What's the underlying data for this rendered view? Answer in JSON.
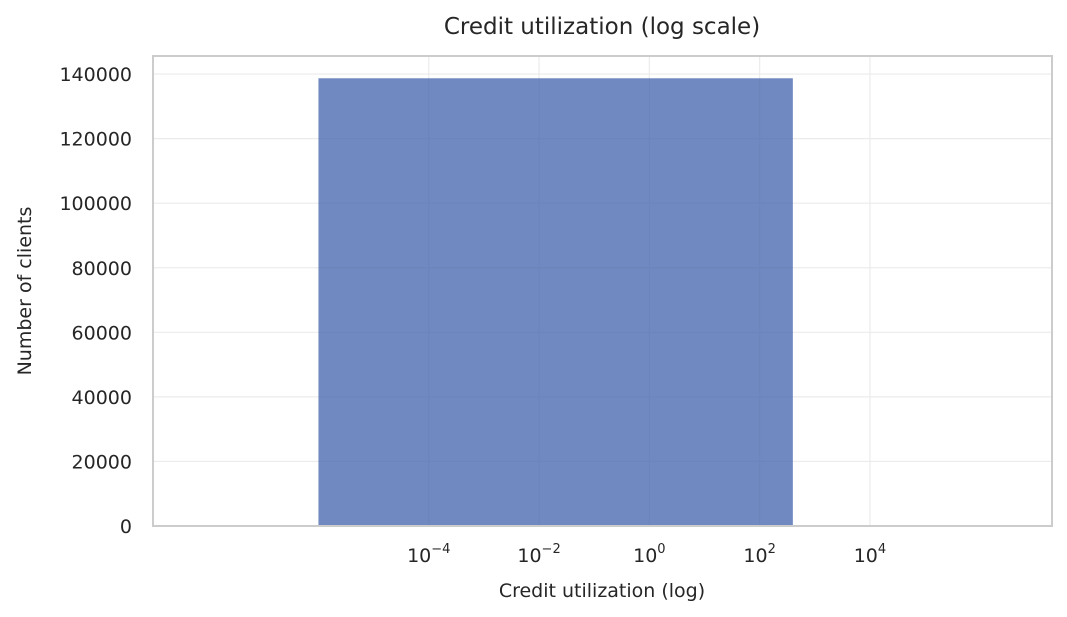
{
  "chart_data": {
    "type": "bar",
    "title": "Credit utilization (log scale)",
    "xlabel": "Credit utilization (log)",
    "ylabel": "Number of clients",
    "x_scale": "log",
    "x_range": [
      1e-09,
      20000000
    ],
    "ylim": [
      0,
      145600
    ],
    "grid": true,
    "x_ticks": [
      {
        "value": 0.0001,
        "base": "10",
        "exponent": "−4"
      },
      {
        "value": 0.01,
        "base": "10",
        "exponent": "−2"
      },
      {
        "value": 1,
        "base": "10",
        "exponent": "0"
      },
      {
        "value": 100,
        "base": "10",
        "exponent": "2"
      },
      {
        "value": 10000,
        "base": "10",
        "exponent": "4"
      }
    ],
    "y_ticks": [
      0,
      20000,
      40000,
      60000,
      80000,
      100000,
      120000,
      140000
    ],
    "bars": [
      {
        "x_start": 1e-06,
        "x_end": 400,
        "value": 138700
      }
    ],
    "colors": {
      "bar": "#4c6bb0",
      "bar_opacity": 0.8
    }
  }
}
